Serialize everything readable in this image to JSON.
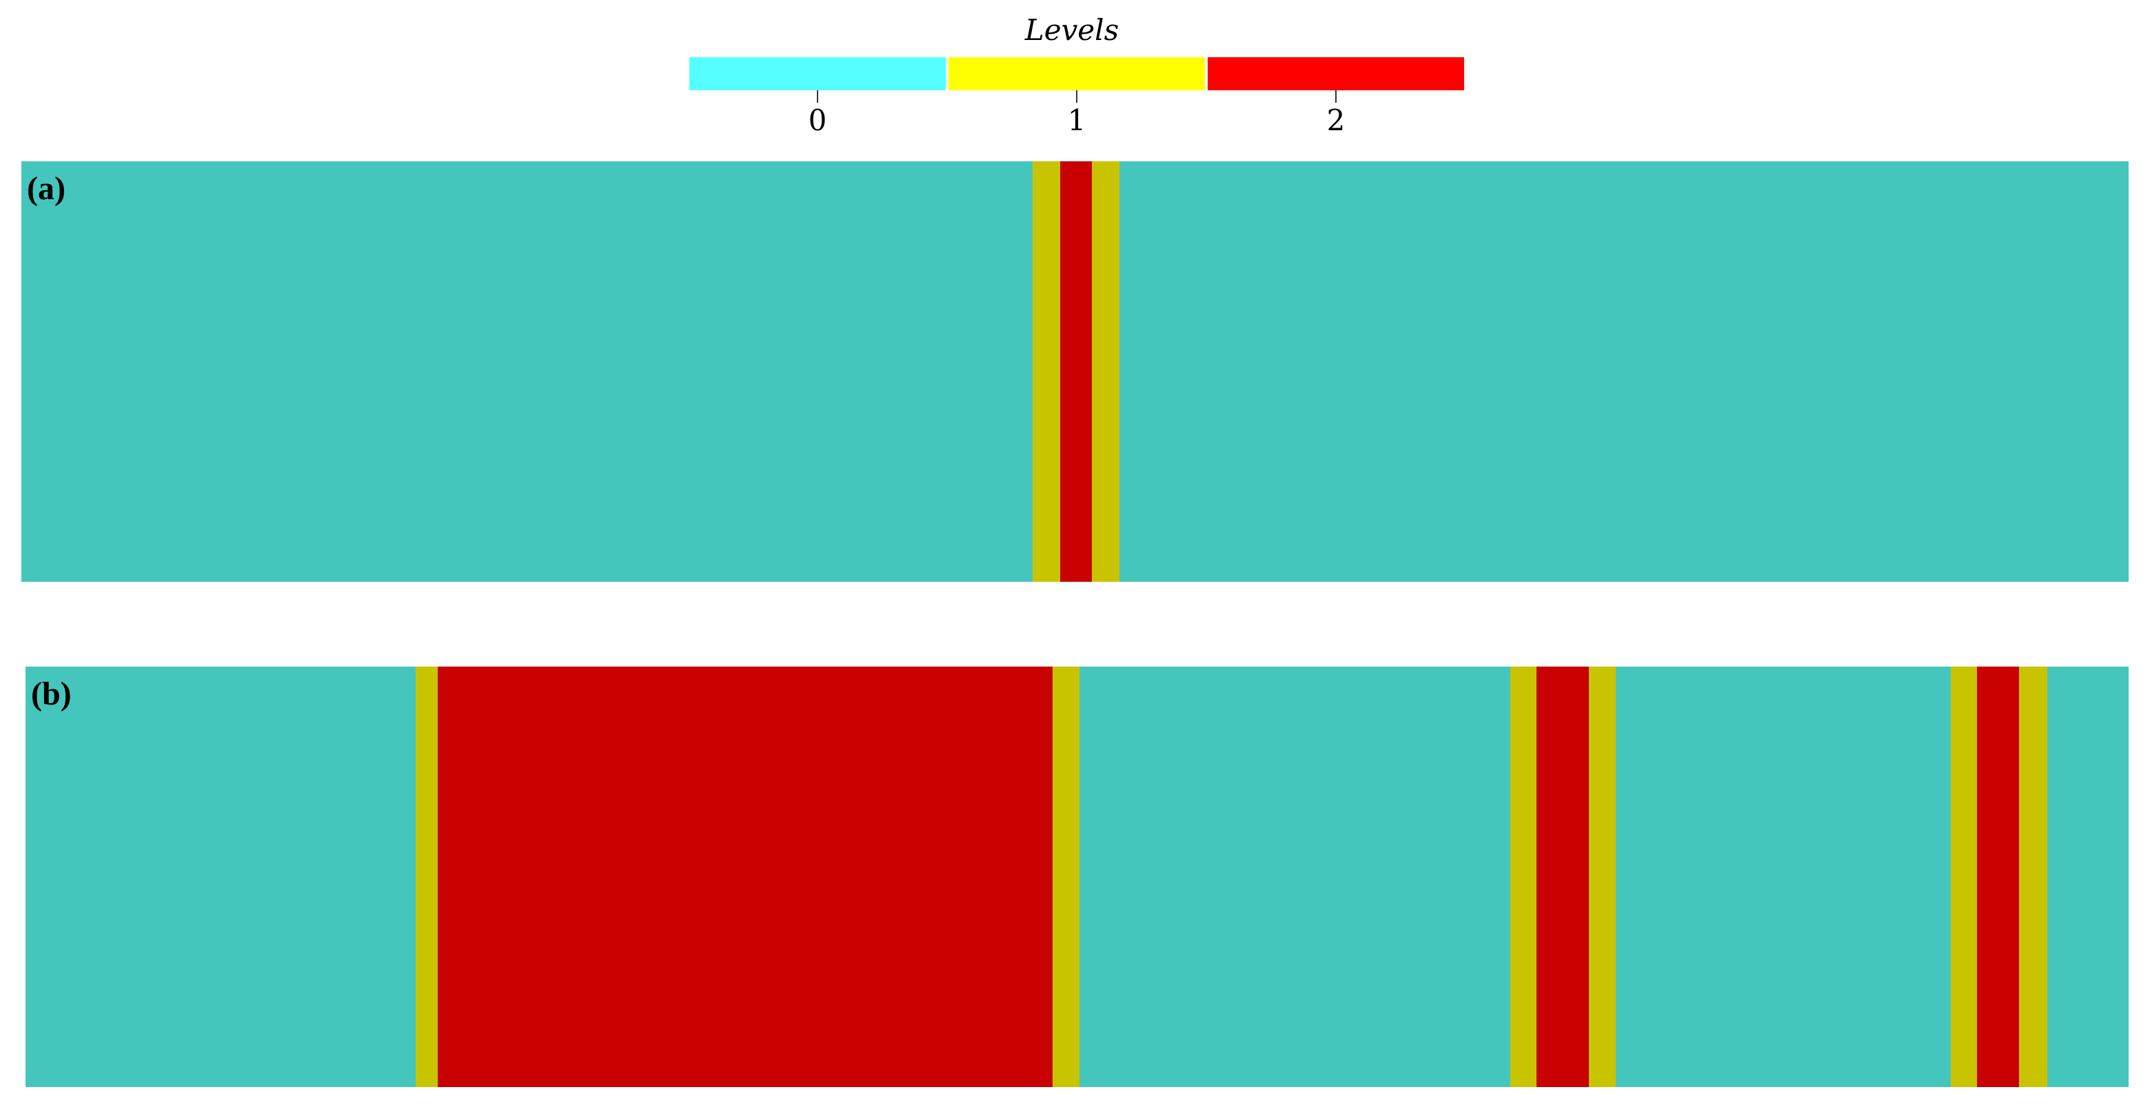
{
  "legend": {
    "title": "Levels",
    "items": [
      {
        "label": "0",
        "color": "#55ffff"
      },
      {
        "label": "1",
        "color": "#ffff00"
      },
      {
        "label": "2",
        "color": "#ff0000"
      }
    ]
  },
  "domain_colors": {
    "level_0": "#45c6bd",
    "level_1": "#c8c400",
    "level_2": "#c80000"
  },
  "panels": [
    {
      "label": "(a)",
      "regions": [
        {
          "start": 0.0,
          "end": 0.48,
          "level": 0
        },
        {
          "start": 0.48,
          "end": 0.493,
          "level": 1
        },
        {
          "start": 0.493,
          "end": 0.508,
          "level": 2
        },
        {
          "start": 0.508,
          "end": 0.521,
          "level": 1
        },
        {
          "start": 0.521,
          "end": 1.0,
          "level": 0
        }
      ]
    },
    {
      "label": "(b)",
      "regions": [
        {
          "start": 0.0,
          "end": 0.1855,
          "level": 0
        },
        {
          "start": 0.1855,
          "end": 0.196,
          "level": 1
        },
        {
          "start": 0.196,
          "end": 0.4885,
          "level": 2
        },
        {
          "start": 0.4885,
          "end": 0.501,
          "level": 1
        },
        {
          "start": 0.501,
          "end": 0.706,
          "level": 0
        },
        {
          "start": 0.706,
          "end": 0.7185,
          "level": 1
        },
        {
          "start": 0.7185,
          "end": 0.7435,
          "level": 2
        },
        {
          "start": 0.7435,
          "end": 0.756,
          "level": 1
        },
        {
          "start": 0.756,
          "end": 0.9155,
          "level": 0
        },
        {
          "start": 0.9155,
          "end": 0.928,
          "level": 1
        },
        {
          "start": 0.928,
          "end": 0.948,
          "level": 2
        },
        {
          "start": 0.948,
          "end": 0.961,
          "level": 1
        },
        {
          "start": 0.961,
          "end": 1.0,
          "level": 0
        }
      ]
    }
  ]
}
